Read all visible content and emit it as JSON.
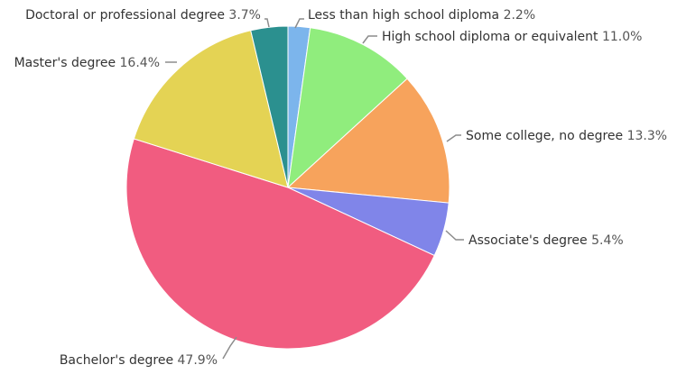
{
  "chart_data": {
    "type": "pie",
    "categories": [
      "Less than high school diploma",
      "High school diploma or equivalent",
      "Some college, no degree",
      "Associate's degree",
      "Bachelor's degree",
      "Master's degree",
      "Doctoral or professional degree"
    ],
    "values": [
      2.2,
      11.0,
      13.3,
      5.4,
      47.9,
      16.4,
      3.7
    ],
    "value_labels": [
      "2.2%",
      "11.0%",
      "13.3%",
      "5.4%",
      "47.9%",
      "16.4%",
      "3.7%"
    ],
    "colors": [
      "#7cb5ec",
      "#90ed7d",
      "#f7a35c",
      "#8085e9",
      "#f15c80",
      "#e4d354",
      "#2b908f"
    ],
    "start_angle_deg": 0,
    "direction": "clockwise",
    "title": "",
    "legend": "none"
  }
}
